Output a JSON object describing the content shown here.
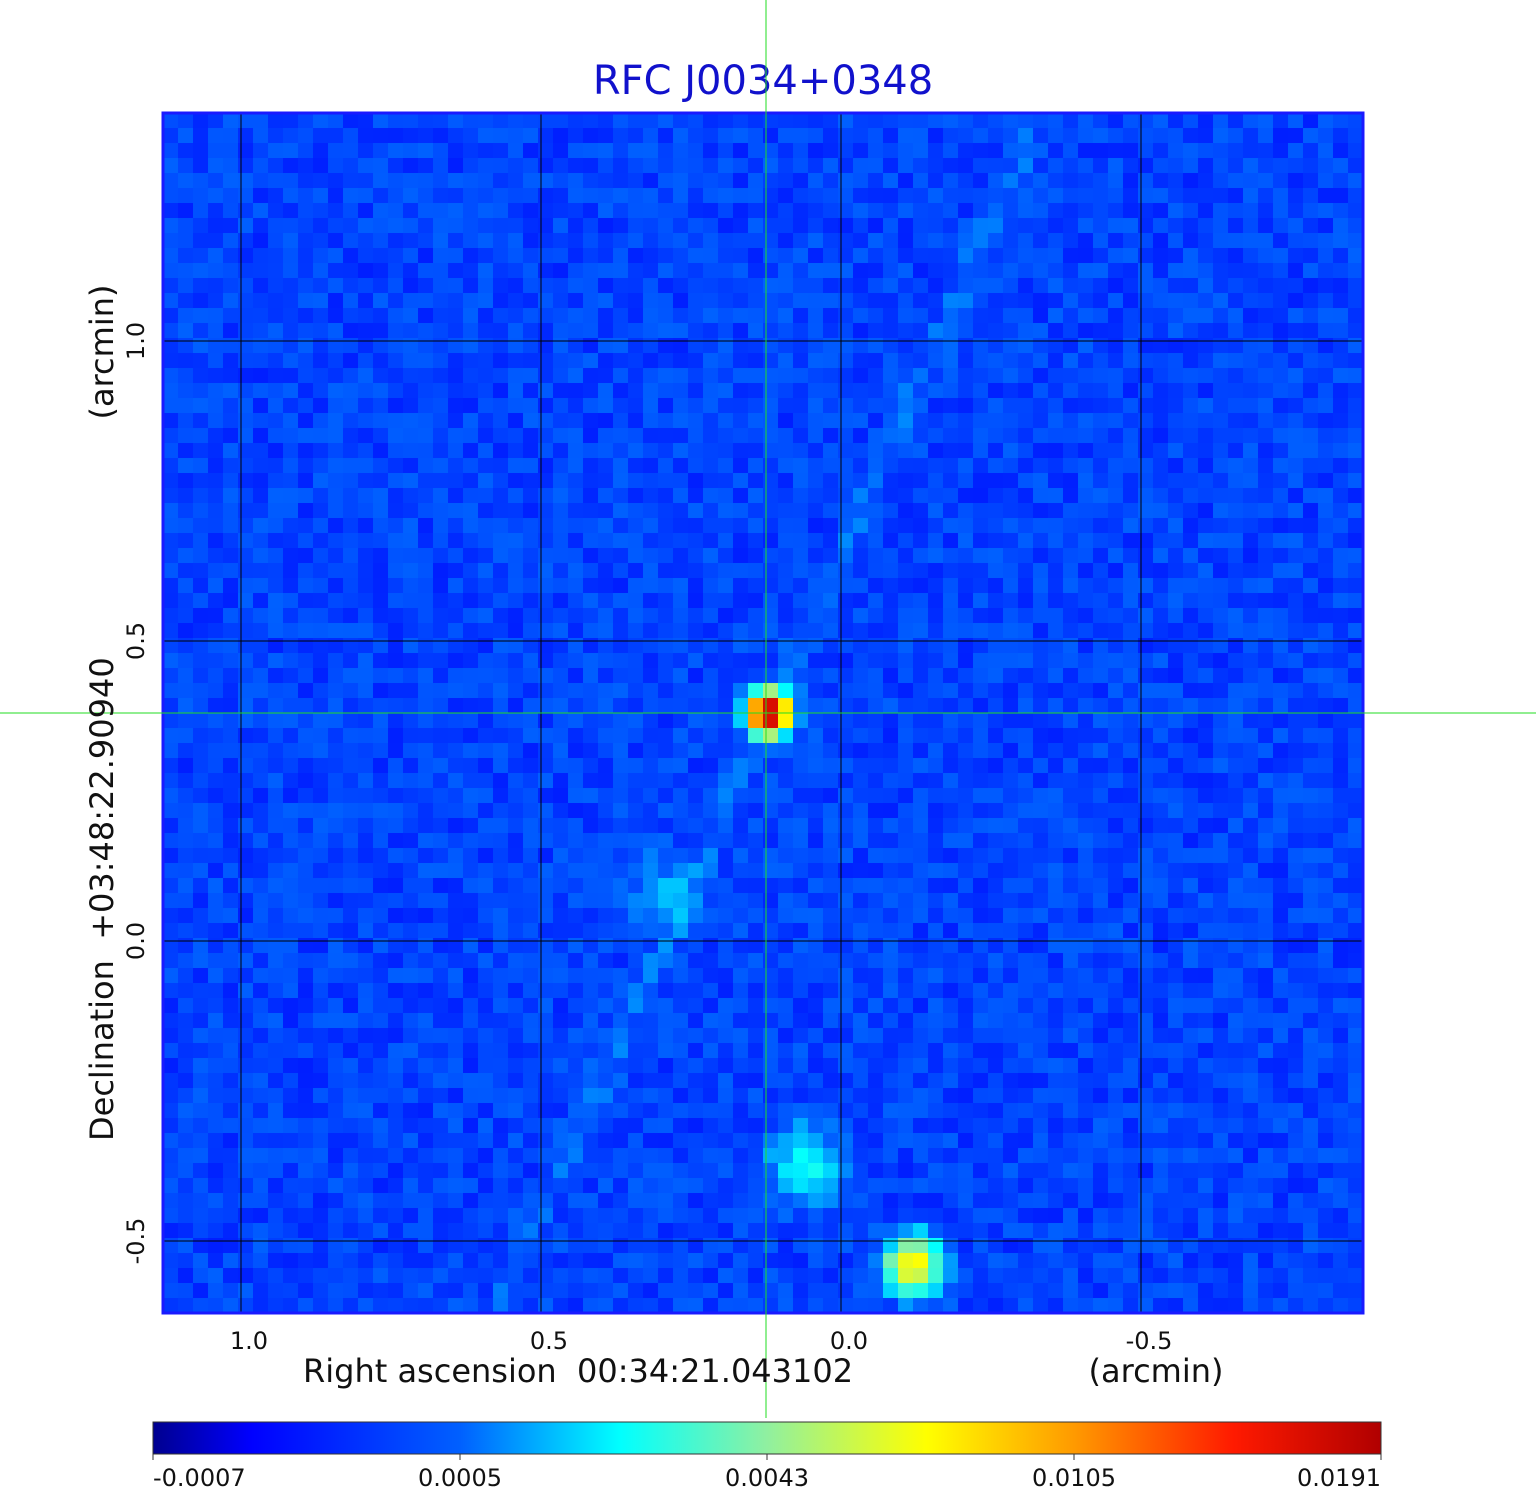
{
  "chart_data": {
    "type": "heatmap",
    "title": "RFC J0034+0348",
    "xlabel": "Right ascension  00:34:21.043102",
    "xunit": "(arcmin)",
    "ylabel": "Declination  +03:48:22.90940",
    "yunit": "(arcmin)",
    "xlim": [
      1.13,
      -0.87
    ],
    "ylim": [
      -0.62,
      1.38
    ],
    "xticks": [
      1.0,
      0.5,
      0.0,
      -0.5
    ],
    "xtick_labels": [
      "1.0",
      "0.5",
      "0.0",
      "-0.5"
    ],
    "yticks": [
      1.0,
      0.5,
      0.0,
      -0.5
    ],
    "ytick_labels": [
      "1.0",
      "0.5",
      "0.0",
      "-0.5"
    ],
    "grid": true,
    "crosshair": {
      "x": 0.125,
      "y": 0.38
    },
    "sources": [
      {
        "x": 0.12,
        "y": 0.38,
        "peak": 0.0191
      },
      {
        "x": -0.12,
        "y": -0.54,
        "peak": 0.0075
      },
      {
        "x": 0.06,
        "y": -0.37,
        "peak": 0.0022
      },
      {
        "x": 0.29,
        "y": 0.08,
        "peak": 0.0012
      }
    ],
    "colorbar": {
      "colormap": "jet",
      "tick_labels": [
        "-0.0007",
        "0.0005",
        "0.0043",
        "0.0105",
        "0.0191"
      ]
    },
    "colors": {
      "title": "#1111cc",
      "frame": "#1a1aff",
      "grid": "#000000",
      "crosshair": "#22dd22"
    }
  }
}
